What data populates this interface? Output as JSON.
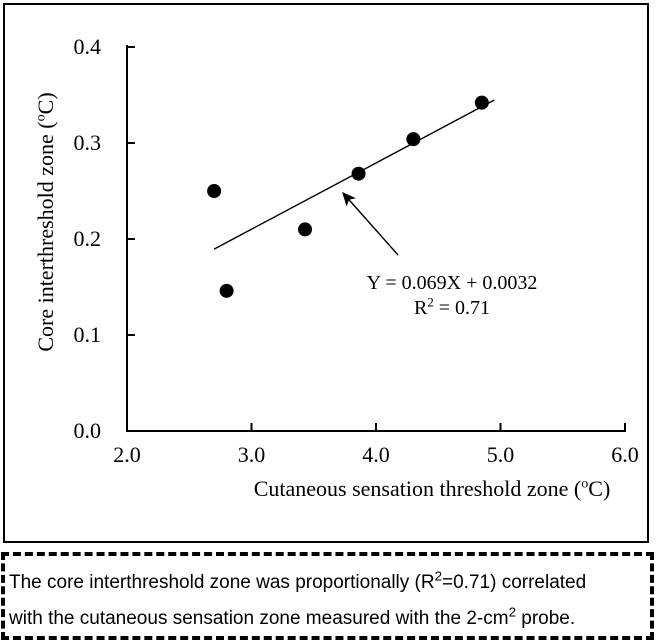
{
  "chart_data": {
    "type": "scatter",
    "title": "",
    "xlabel": "Cutaneous sensation threshold zone (°C)",
    "ylabel": "Core interthreshold zone (°C)",
    "xlabel_parts": {
      "pre": "Cutaneous sensation threshold zone (",
      "sup": "o",
      "post": "C)"
    },
    "ylabel_parts": {
      "pre": "Core interthreshold zone (",
      "sup": "o",
      "post": "C)"
    },
    "xlim": [
      2.0,
      6.0
    ],
    "ylim": [
      0.0,
      0.4
    ],
    "x_ticks": [
      "2.0",
      "3.0",
      "4.0",
      "5.0",
      "6.0"
    ],
    "y_ticks": [
      "0.0",
      "0.1",
      "0.2",
      "0.3",
      "0.4"
    ],
    "grid": false,
    "legend": false,
    "points": [
      {
        "x": 2.7,
        "y": 0.25
      },
      {
        "x": 2.8,
        "y": 0.146
      },
      {
        "x": 3.43,
        "y": 0.21
      },
      {
        "x": 3.86,
        "y": 0.268
      },
      {
        "x": 4.3,
        "y": 0.304
      },
      {
        "x": 4.85,
        "y": 0.342
      }
    ],
    "marker": {
      "shape": "circle",
      "color": "#000000",
      "radius_px": 7
    },
    "trendline": {
      "slope": 0.069,
      "intercept": 0.0032,
      "x_start": 2.7,
      "x_end": 4.95,
      "equation_label": "Y = 0.069X + 0.0032",
      "r_squared_label": "R² = 0.71",
      "r2_parts": {
        "pre": "R",
        "sup": "2",
        "post": " = 0.71"
      }
    }
  },
  "caption": {
    "text": "The core interthreshold zone was proportionally (R²=0.71) correlated with the cutaneous sensation zone measured with the 2-cm² probe.",
    "line1_parts": {
      "pre": "The core interthreshold zone was proportionally (R",
      "sup": "2",
      "post": "=0.71) correlated"
    },
    "line2_parts": {
      "pre": "with the cutaneous sensation zone measured with the 2-cm",
      "sup": "2",
      "post": " probe."
    }
  },
  "colors": {
    "ink": "#000000",
    "background": "#ffffff"
  }
}
